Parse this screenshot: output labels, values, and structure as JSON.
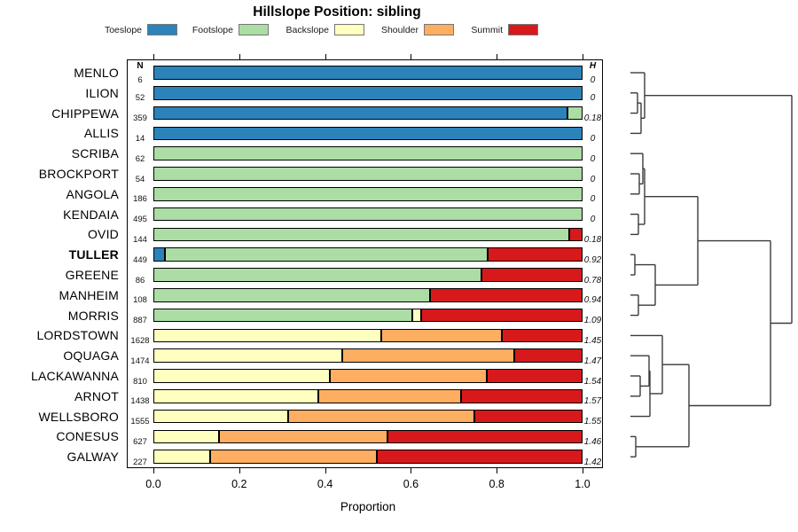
{
  "title": "Hillslope Position: sibling",
  "legend": [
    {
      "label": "Toeslope",
      "color": "#2b83ba"
    },
    {
      "label": "Footslope",
      "color": "#abdda4"
    },
    {
      "label": "Backslope",
      "color": "#ffffbf"
    },
    {
      "label": "Shoulder",
      "color": "#fdae61"
    },
    {
      "label": "Summit",
      "color": "#d7191c"
    }
  ],
  "chart_data": {
    "type": "bar",
    "orientation": "horizontal",
    "stacked": true,
    "title": "Hillslope Position: sibling",
    "xlabel": "Proportion",
    "xlim": [
      0,
      1
    ],
    "x_tick_labels": [
      "0.0",
      "0.2",
      "0.4",
      "0.6",
      "0.8",
      "1.0"
    ],
    "x_tick_values": [
      0,
      0.2,
      0.4,
      0.6,
      0.8,
      1.0
    ],
    "series_names": [
      "Toeslope",
      "Footslope",
      "Backslope",
      "Shoulder",
      "Summit"
    ],
    "palette": [
      "#2b83ba",
      "#abdda4",
      "#ffffbf",
      "#fdae61",
      "#d7191c"
    ],
    "columns": {
      "n": "N",
      "h": "H"
    },
    "rows": [
      {
        "name": "MENLO",
        "n": "6",
        "h": "0",
        "bold": false,
        "proportions": [
          1,
          0,
          0,
          0,
          0
        ]
      },
      {
        "name": "ILION",
        "n": "52",
        "h": "0",
        "bold": false,
        "proportions": [
          1,
          0,
          0,
          0,
          0
        ]
      },
      {
        "name": "CHIPPEWA",
        "n": "359",
        "h": "0.18",
        "bold": false,
        "proportions": [
          0.965,
          0.035,
          0,
          0,
          0
        ]
      },
      {
        "name": "ALLIS",
        "n": "14",
        "h": "0",
        "bold": false,
        "proportions": [
          1,
          0,
          0,
          0,
          0
        ]
      },
      {
        "name": "SCRIBA",
        "n": "62",
        "h": "0",
        "bold": false,
        "proportions": [
          0,
          1,
          0,
          0,
          0
        ]
      },
      {
        "name": "BROCKPORT",
        "n": "54",
        "h": "0",
        "bold": false,
        "proportions": [
          0,
          1,
          0,
          0,
          0
        ]
      },
      {
        "name": "ANGOLA",
        "n": "186",
        "h": "0",
        "bold": false,
        "proportions": [
          0,
          1,
          0,
          0,
          0
        ]
      },
      {
        "name": "KENDAIA",
        "n": "495",
        "h": "0",
        "bold": false,
        "proportions": [
          0,
          1,
          0,
          0,
          0
        ]
      },
      {
        "name": "OVID",
        "n": "144",
        "h": "0.18",
        "bold": false,
        "proportions": [
          0,
          0.968,
          0,
          0,
          0.032
        ]
      },
      {
        "name": "TULLER",
        "n": "449",
        "h": "0.92",
        "bold": true,
        "proportions": [
          0.027,
          0.752,
          0,
          0,
          0.221
        ]
      },
      {
        "name": "GREENE",
        "n": "86",
        "h": "0.78",
        "bold": false,
        "proportions": [
          0,
          0.765,
          0,
          0,
          0.235
        ]
      },
      {
        "name": "MANHEIM",
        "n": "108",
        "h": "0.94",
        "bold": false,
        "proportions": [
          0,
          0.645,
          0,
          0,
          0.355
        ]
      },
      {
        "name": "MORRIS",
        "n": "887",
        "h": "1.09",
        "bold": false,
        "proportions": [
          0,
          0.603,
          0.021,
          0,
          0.376
        ]
      },
      {
        "name": "LORDSTOWN",
        "n": "1628",
        "h": "1.45",
        "bold": false,
        "proportions": [
          0,
          0,
          0.53,
          0.283,
          0.187
        ]
      },
      {
        "name": "OQUAGA",
        "n": "1474",
        "h": "1.47",
        "bold": false,
        "proportions": [
          0,
          0,
          0.44,
          0.4,
          0.16
        ]
      },
      {
        "name": "LACKAWANNA",
        "n": "810",
        "h": "1.54",
        "bold": false,
        "proportions": [
          0,
          0,
          0.412,
          0.364,
          0.224
        ]
      },
      {
        "name": "ARNOT",
        "n": "1438",
        "h": "1.57",
        "bold": false,
        "proportions": [
          0,
          0,
          0.385,
          0.332,
          0.283
        ]
      },
      {
        "name": "WELLSBORO",
        "n": "1555",
        "h": "1.55",
        "bold": false,
        "proportions": [
          0,
          0,
          0.314,
          0.434,
          0.252
        ]
      },
      {
        "name": "CONESUS",
        "n": "627",
        "h": "1.46",
        "bold": false,
        "proportions": [
          0,
          0,
          0.152,
          0.393,
          0.455
        ]
      },
      {
        "name": "GALWAY",
        "n": "227",
        "h": "1.42",
        "bold": false,
        "proportions": [
          0,
          0,
          0.132,
          0.389,
          0.479
        ]
      }
    ],
    "dendrogram": {
      "h": 182,
      "c": [
        {
          "h": 16,
          "c": [
            {
              "leaf": 0
            },
            {
              "h": 12,
              "c": [
                {
                  "h": 8,
                  "c": [
                    {
                      "leaf": 1
                    },
                    {
                      "leaf": 2
                    }
                  ]
                },
                {
                  "leaf": 3
                }
              ]
            }
          ]
        },
        {
          "h": 158,
          "c": [
            {
              "h": 76,
              "c": [
                {
                  "h": 16,
                  "c": [
                    {
                      "h": 14,
                      "c": [
                        {
                          "leaf": 4
                        },
                        {
                          "h": 10,
                          "c": [
                            {
                              "leaf": 5
                            },
                            {
                              "leaf": 6
                            }
                          ]
                        }
                      ]
                    },
                    {
                      "h": 9,
                      "c": [
                        {
                          "leaf": 7
                        },
                        {
                          "leaf": 8
                        }
                      ]
                    }
                  ]
                },
                {
                  "h": 28,
                  "c": [
                    {
                      "h": 5,
                      "c": [
                        {
                          "leaf": 9
                        },
                        {
                          "leaf": 10
                        }
                      ]
                    },
                    {
                      "h": 9,
                      "c": [
                        {
                          "leaf": 11
                        },
                        {
                          "leaf": 12
                        }
                      ]
                    }
                  ]
                }
              ]
            },
            {
              "h": 66,
              "c": [
                {
                  "h": 36,
                  "c": [
                    {
                      "leaf": 13
                    },
                    {
                      "h": 22,
                      "c": [
                        {
                          "h": 21,
                          "c": [
                            {
                              "leaf": 14
                            },
                            {
                              "h": 11,
                              "c": [
                                {
                                  "leaf": 15
                                },
                                {
                                  "leaf": 16
                                }
                              ]
                            }
                          ]
                        },
                        {
                          "leaf": 17
                        }
                      ]
                    }
                  ]
                },
                {
                  "h": 6,
                  "c": [
                    {
                      "leaf": 18
                    },
                    {
                      "leaf": 19
                    }
                  ]
                }
              ]
            }
          ]
        }
      ]
    }
  }
}
